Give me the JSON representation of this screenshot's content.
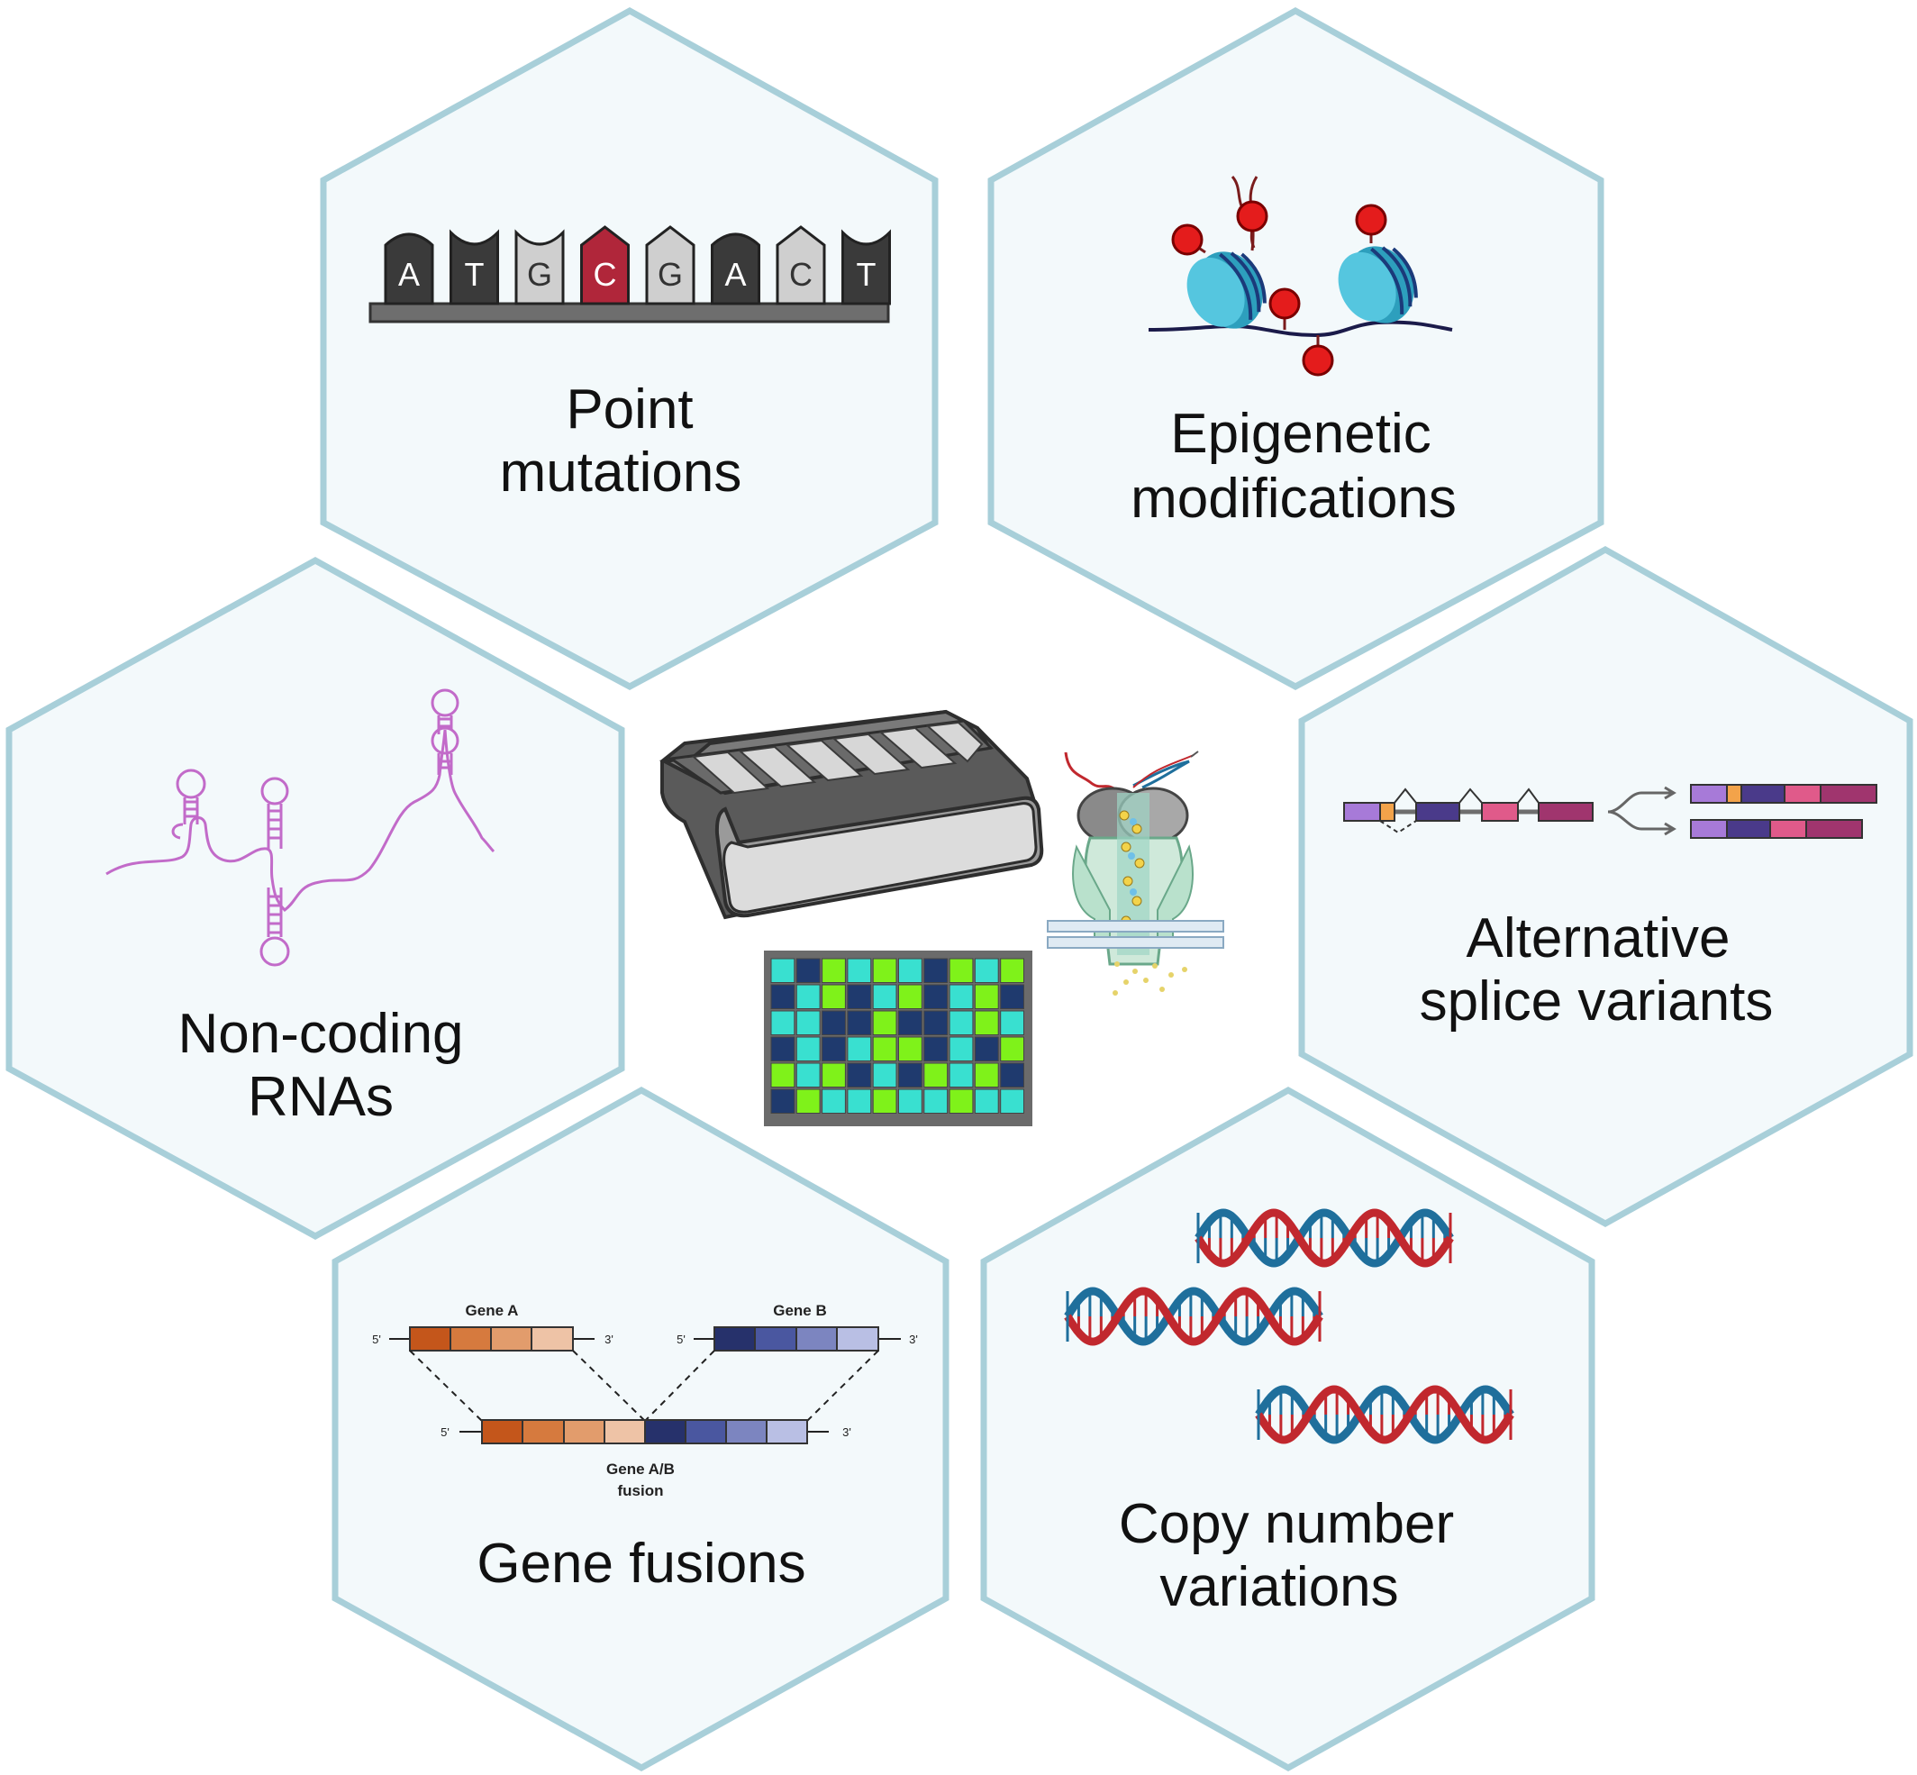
{
  "panels": {
    "point_mutations": {
      "title_line1": "Point",
      "title_line2": "mutations",
      "bases": [
        "A",
        "T",
        "G",
        "C",
        "G",
        "A",
        "C",
        "T"
      ]
    },
    "epigenetic": {
      "title_line1": "Epigenetic",
      "title_line2": "modifications"
    },
    "noncoding": {
      "title_line1": "Non-coding",
      "title_line2": "RNAs"
    },
    "splice": {
      "title_line1": "Alternative",
      "title_line2": "splice variants"
    },
    "fusions": {
      "title": "Gene fusions",
      "gene_a": "Gene A",
      "gene_b": "Gene B",
      "fusion_line1": "Gene A/B",
      "fusion_line2": "fusion",
      "five_prime": "5'",
      "three_prime": "3'"
    },
    "cnv": {
      "title_line1": "Copy number",
      "title_line2": "variations"
    }
  },
  "colors": {
    "hex_fill": "#f3f9fb",
    "hex_stroke": "#a8cfd9",
    "base_dark": "#3a3a3a",
    "base_light": "#cfcfcf",
    "base_mutant": "#b0263a",
    "methyl_red": "#e41c1c",
    "nucleosome": "#3bb3cf",
    "rna_purple": "#c26bc9",
    "gene_a": [
      "#c4561b",
      "#d67a3e",
      "#e29c6c",
      "#eec3a6"
    ],
    "gene_b": [
      "#26316b",
      "#4a57a0",
      "#7c85c0",
      "#b9bfe4"
    ],
    "dna_red": "#c1282e",
    "dna_blue": "#1f6f9c",
    "heatmap": [
      "#1f3a6e",
      "#39e0d0",
      "#7ff21a"
    ]
  },
  "icons": {
    "sequencer": "sequencer-machine-icon",
    "nanopore": "nanopore-icon",
    "microarray": "microarray-icon"
  }
}
